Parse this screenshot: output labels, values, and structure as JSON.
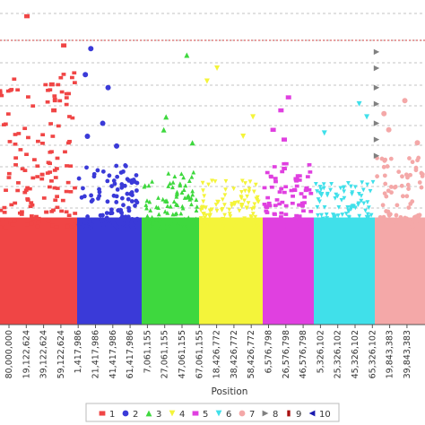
{
  "chart_data": {
    "type": "scatter",
    "title": "",
    "xlabel": "Position",
    "ylabel": "",
    "grid": "horizontal-dashed",
    "legend_placement": "bottom",
    "y_threshold_color": "#d04040",
    "x_tick_labels": [
      "80,000,000",
      "19,122,624",
      "39,122,624",
      "59,122,624",
      "1,417,986",
      "21,417,986",
      "41,417,986",
      "61,417,986",
      "7,061,155",
      "27,061,155",
      "47,061,155",
      "67,061,155",
      "18,426,772",
      "38,426,772",
      "58,426,772",
      "6,576,798",
      "26,576,798",
      "46,576,798",
      "5,326,102",
      "25,326,102",
      "45,326,102",
      "65,326,102",
      "19,843,383",
      "39,843,383",
      "59,843,383"
    ],
    "series": [
      {
        "name": "1",
        "color": "#f04545",
        "marker": "square",
        "peak": 0.78,
        "outliers": [
          0.95,
          0.86,
          0.74,
          0.66
        ]
      },
      {
        "name": "2",
        "color": "#3a3ad8",
        "marker": "circle",
        "peak": 0.5,
        "outliers": [
          0.85,
          0.77,
          0.73,
          0.62,
          0.58,
          0.55
        ]
      },
      {
        "name": "3",
        "color": "#3ed83e",
        "marker": "triangle-up",
        "peak": 0.47,
        "outliers": [
          0.83,
          0.64,
          0.6,
          0.56
        ]
      },
      {
        "name": "4",
        "color": "#f4f43a",
        "marker": "triangle-down",
        "peak": 0.45,
        "outliers": [
          0.79,
          0.75,
          0.64,
          0.58
        ]
      },
      {
        "name": "5",
        "color": "#e040e0",
        "marker": "square",
        "peak": 0.5,
        "outliers": [
          0.7,
          0.66,
          0.6,
          0.57
        ]
      },
      {
        "name": "6",
        "color": "#40e0ea",
        "marker": "triangle-down",
        "peak": 0.44,
        "outliers": [
          0.68,
          0.64,
          0.59
        ]
      },
      {
        "name": "7",
        "color": "#f4a8a8",
        "marker": "circle",
        "peak": 0.52,
        "outliers": [
          0.69,
          0.65,
          0.6,
          0.56
        ]
      },
      {
        "name": "8",
        "color": "#808080",
        "marker": "triangle-right",
        "peak": 0.45,
        "outliers": [
          0.84,
          0.79,
          0.73,
          0.68,
          0.62,
          0.57,
          0.52
        ]
      },
      {
        "name": "9",
        "color": "#a81010",
        "marker": "bar",
        "peak": 0,
        "outliers": []
      },
      {
        "name": "10",
        "color": "#1a1ab0",
        "marker": "triangle-left",
        "peak": 0,
        "outliers": []
      }
    ]
  }
}
